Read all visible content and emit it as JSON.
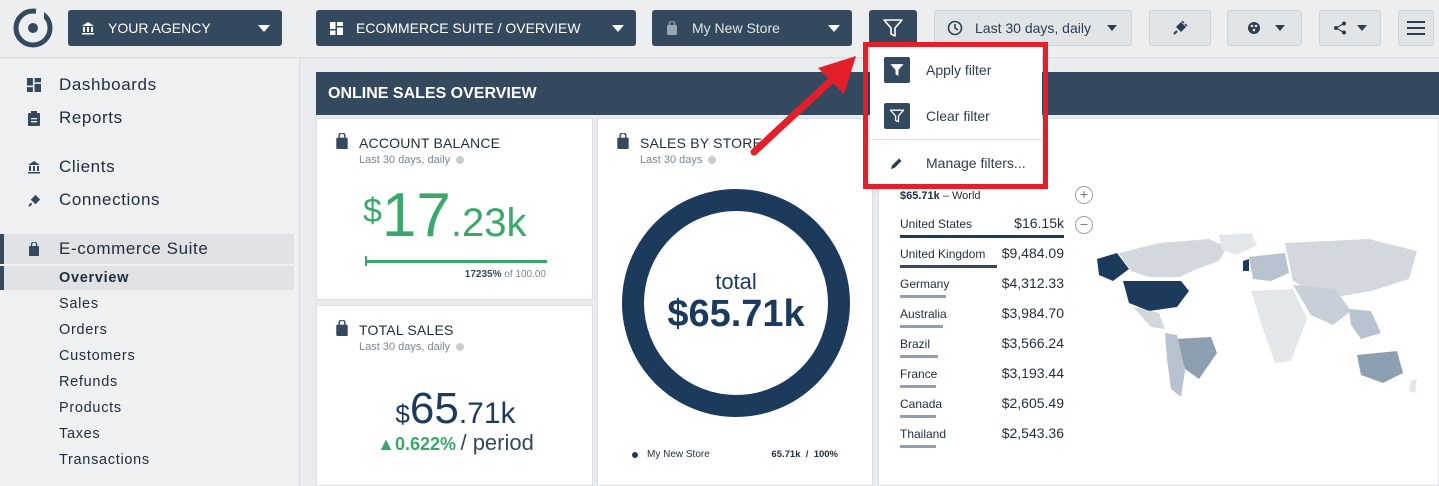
{
  "topbar": {
    "agency_label": "YOUR AGENCY",
    "dashboard_label": "ECOMMERCE SUITE / OVERVIEW",
    "store_label": "My New Store",
    "date_range_label": "Last 30 days, daily"
  },
  "sidebar": {
    "items": [
      {
        "label": "Dashboards",
        "icon": "dashboard-icon"
      },
      {
        "label": "Reports",
        "icon": "report-icon"
      },
      {
        "label": "Clients",
        "icon": "bank-icon"
      },
      {
        "label": "Connections",
        "icon": "plug-icon"
      },
      {
        "label": "E-commerce Suite",
        "icon": "shopping-bag-icon"
      }
    ],
    "subitems": [
      "Overview",
      "Sales",
      "Orders",
      "Customers",
      "Refunds",
      "Products",
      "Taxes",
      "Transactions"
    ]
  },
  "section": {
    "title": "ONLINE SALES OVERVIEW"
  },
  "account_balance": {
    "title": "ACCOUNT BALANCE",
    "subtitle": "Last 30 days, daily",
    "currency": "$",
    "value_int": "17",
    "value_dec": ".23k",
    "progress_pct": "17235%",
    "progress_of": "of 100.00",
    "progress_fraction": 1.0,
    "accent": "#3aa86b"
  },
  "total_sales": {
    "title": "TOTAL SALES",
    "subtitle": "Last 30 days, daily",
    "currency": "$",
    "value_int": "65",
    "value_dec": ".71k",
    "change": "▲0.622%",
    "period": "/ period"
  },
  "sales_by_store": {
    "title": "SALES BY STORE",
    "subtitle": "Last 30 days",
    "center_label": "total",
    "center_value": "$65.71k",
    "legend_name": "My New Store",
    "legend_value": "65.71k",
    "legend_sep": "/",
    "legend_pct": "100%",
    "ring_color": "#1b3a5c"
  },
  "world": {
    "header_value": "$65.71k",
    "header_suffix": "– World",
    "countries": [
      {
        "name": "United States",
        "value": "$16.15k",
        "share": 1.0
      },
      {
        "name": "United Kingdom",
        "value": "$9,484.09",
        "share": 0.59
      },
      {
        "name": "Germany",
        "value": "$4,312.33",
        "share": 0.28
      },
      {
        "name": "Australia",
        "value": "$3,984.70",
        "share": 0.26
      },
      {
        "name": "Brazil",
        "value": "$3,566.24",
        "share": 0.23
      },
      {
        "name": "France",
        "value": "$3,193.44",
        "share": 0.21
      },
      {
        "name": "Canada",
        "value": "$2,605.49",
        "share": 0.17
      },
      {
        "name": "Thailand",
        "value": "$2,543.36",
        "share": 0.17
      }
    ]
  },
  "filter_menu": {
    "apply": "Apply filter",
    "clear": "Clear filter",
    "manage": "Manage filters..."
  }
}
